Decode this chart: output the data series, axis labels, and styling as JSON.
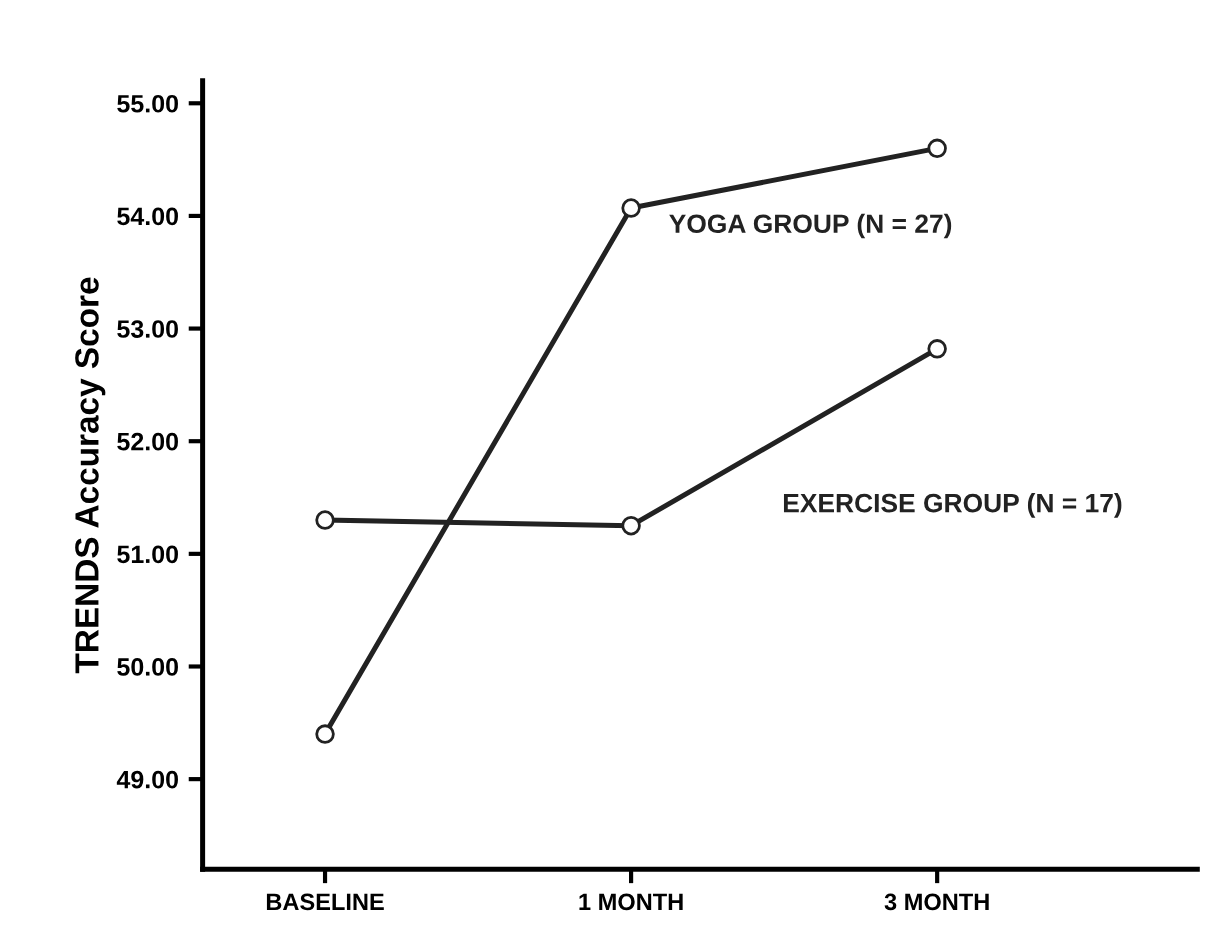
{
  "chart_data": {
    "type": "line",
    "ylabel": "TRENDS Accuracy Score",
    "categories": [
      "BASELINE",
      "1 MONTH",
      "3 MONTH"
    ],
    "series": [
      {
        "name": "YOGA GROUP (N = 27)",
        "color": "#222222",
        "values": [
          49.4,
          54.07,
          54.6
        ]
      },
      {
        "name": "EXERCISE GROUP (N = 17)",
        "color": "#222222",
        "values": [
          51.3,
          51.25,
          52.82
        ]
      }
    ],
    "ylim": [
      48.2,
      55.2
    ],
    "yticks": [
      {
        "value": 49,
        "label": "49.00"
      },
      {
        "value": 50,
        "label": "50.00"
      },
      {
        "value": 51,
        "label": "51.00"
      },
      {
        "value": 52,
        "label": "52.00"
      },
      {
        "value": 53,
        "label": "53.00"
      },
      {
        "value": 54,
        "label": "54.00"
      },
      {
        "value": 55,
        "label": "55.00"
      }
    ],
    "marker": "circle",
    "line_style": "solid",
    "grid": false,
    "legend": false
  }
}
